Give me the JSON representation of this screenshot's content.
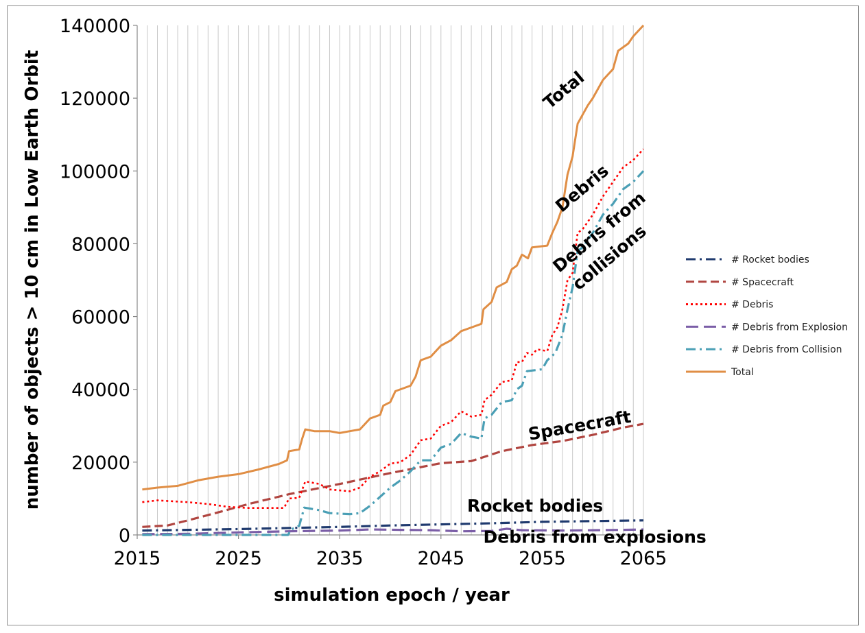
{
  "chart_data": {
    "type": "line",
    "xlabel": "simulation epoch /  year",
    "ylabel": "number of objects > 10 cm in Low Earth Orbit",
    "xlim": [
      2015,
      2065
    ],
    "ylim": [
      0,
      140000
    ],
    "xticks": [
      2015,
      2025,
      2035,
      2045,
      2055,
      2065
    ],
    "yticks": [
      0,
      20000,
      40000,
      60000,
      80000,
      100000,
      120000,
      140000
    ],
    "grid": "vertical",
    "legend_position": "right",
    "series": [
      {
        "name": "# Rocket bodies",
        "color": "#1f3a6e",
        "dash": "dash-dot",
        "points": [
          [
            2015.5,
            1200
          ],
          [
            2020,
            1400
          ],
          [
            2025,
            1600
          ],
          [
            2030,
            1900
          ],
          [
            2035,
            2200
          ],
          [
            2040,
            2600
          ],
          [
            2045,
            2900
          ],
          [
            2050,
            3200
          ],
          [
            2055,
            3600
          ],
          [
            2060,
            3800
          ],
          [
            2065,
            4000
          ]
        ]
      },
      {
        "name": "# Spacecraft",
        "color": "#b04540",
        "dash": "dash",
        "points": [
          [
            2015.5,
            2200
          ],
          [
            2018,
            2600
          ],
          [
            2020,
            4000
          ],
          [
            2023,
            6200
          ],
          [
            2026,
            8500
          ],
          [
            2030,
            11200
          ],
          [
            2035,
            14000
          ],
          [
            2040,
            17000
          ],
          [
            2045,
            19700
          ],
          [
            2048,
            20300
          ],
          [
            2051,
            23000
          ],
          [
            2054,
            24700
          ],
          [
            2057,
            25800
          ],
          [
            2060,
            27500
          ],
          [
            2063,
            29500
          ],
          [
            2065,
            30500
          ]
        ]
      },
      {
        "name": "# Debris",
        "color": "#ff0000",
        "dash": "dot",
        "points": [
          [
            2015.5,
            9000
          ],
          [
            2017,
            9500
          ],
          [
            2020,
            9000
          ],
          [
            2022,
            8500
          ],
          [
            2024,
            7700
          ],
          [
            2026,
            7400
          ],
          [
            2029.5,
            7400
          ],
          [
            2030,
            10000
          ],
          [
            2031,
            10200
          ],
          [
            2031.6,
            14700
          ],
          [
            2033,
            14000
          ],
          [
            2034,
            12500
          ],
          [
            2036,
            12000
          ],
          [
            2037,
            13000
          ],
          [
            2038,
            16000
          ],
          [
            2039,
            17500
          ],
          [
            2040,
            19600
          ],
          [
            2041,
            20000
          ],
          [
            2042,
            22000
          ],
          [
            2043,
            26000
          ],
          [
            2044,
            26500
          ],
          [
            2045,
            30000
          ],
          [
            2046,
            31000
          ],
          [
            2047,
            34000
          ],
          [
            2048,
            32500
          ],
          [
            2049,
            33000
          ],
          [
            2049.3,
            37000
          ],
          [
            2050,
            38500
          ],
          [
            2051,
            42000
          ],
          [
            2052,
            42500
          ],
          [
            2052.5,
            47500
          ],
          [
            2053,
            47500
          ],
          [
            2053.5,
            50000
          ],
          [
            2054,
            49500
          ],
          [
            2054.5,
            51000
          ],
          [
            2055.5,
            50500
          ],
          [
            2056,
            55000
          ],
          [
            2056.5,
            57000
          ],
          [
            2057,
            62000
          ],
          [
            2057.5,
            70000
          ],
          [
            2058,
            72000
          ],
          [
            2058.5,
            83000
          ],
          [
            2059,
            84000
          ],
          [
            2060,
            88000
          ],
          [
            2061,
            93000
          ],
          [
            2062,
            97000
          ],
          [
            2063,
            101000
          ],
          [
            2064,
            103000
          ],
          [
            2065,
            106000
          ]
        ]
      },
      {
        "name": "# Debris from Explosion",
        "color": "#7b5ea7",
        "dash": "longdash",
        "points": [
          [
            2015.5,
            200
          ],
          [
            2020,
            300
          ],
          [
            2025,
            700
          ],
          [
            2030,
            1000
          ],
          [
            2035,
            1200
          ],
          [
            2038,
            1500
          ],
          [
            2041,
            1400
          ],
          [
            2044,
            1300
          ],
          [
            2047,
            1000
          ],
          [
            2050,
            1100
          ],
          [
            2051.5,
            1700
          ],
          [
            2053,
            1300
          ],
          [
            2057,
            1200
          ],
          [
            2060,
            1300
          ],
          [
            2063,
            1400
          ],
          [
            2065,
            1500
          ]
        ]
      },
      {
        "name": "# Debris from Collision",
        "color": "#4a9fb5",
        "dash": "dash-dot",
        "points": [
          [
            2015.5,
            0
          ],
          [
            2024,
            0
          ],
          [
            2029.9,
            0
          ],
          [
            2030.2,
            1500
          ],
          [
            2031,
            2500
          ],
          [
            2031.5,
            7500
          ],
          [
            2033,
            6800
          ],
          [
            2034,
            6000
          ],
          [
            2036,
            5700
          ],
          [
            2037,
            6000
          ],
          [
            2038,
            8000
          ],
          [
            2039,
            10500
          ],
          [
            2040,
            13000
          ],
          [
            2041,
            15000
          ],
          [
            2042,
            17500
          ],
          [
            2043,
            20500
          ],
          [
            2044,
            20500
          ],
          [
            2045,
            24000
          ],
          [
            2046,
            25000
          ],
          [
            2047,
            28000
          ],
          [
            2048,
            27000
          ],
          [
            2049,
            26500
          ],
          [
            2049.3,
            32000
          ],
          [
            2050,
            33000
          ],
          [
            2051,
            36500
          ],
          [
            2052,
            37000
          ],
          [
            2052.5,
            40000
          ],
          [
            2053,
            41000
          ],
          [
            2053.5,
            45000
          ],
          [
            2055,
            45500
          ],
          [
            2055.5,
            48000
          ],
          [
            2056.3,
            50000
          ],
          [
            2057,
            55000
          ],
          [
            2057.5,
            62000
          ],
          [
            2058,
            68000
          ],
          [
            2058.5,
            78000
          ],
          [
            2059,
            79000
          ],
          [
            2060,
            83000
          ],
          [
            2061,
            88000
          ],
          [
            2062,
            91000
          ],
          [
            2063,
            95000
          ],
          [
            2064,
            97000
          ],
          [
            2065,
            100000
          ]
        ]
      },
      {
        "name": "Total",
        "color": "#e08e45",
        "dash": "solid",
        "points": [
          [
            2015.5,
            12500
          ],
          [
            2017,
            13000
          ],
          [
            2019,
            13500
          ],
          [
            2021,
            15000
          ],
          [
            2023,
            16000
          ],
          [
            2025,
            16700
          ],
          [
            2027,
            18000
          ],
          [
            2029,
            19500
          ],
          [
            2029.8,
            20500
          ],
          [
            2030,
            23000
          ],
          [
            2031,
            23500
          ],
          [
            2031.3,
            26500
          ],
          [
            2031.6,
            29000
          ],
          [
            2032.5,
            28500
          ],
          [
            2034,
            28500
          ],
          [
            2035,
            28000
          ],
          [
            2036,
            28500
          ],
          [
            2037,
            29000
          ],
          [
            2038,
            32000
          ],
          [
            2039,
            33000
          ],
          [
            2039.3,
            35500
          ],
          [
            2040,
            36500
          ],
          [
            2040.5,
            39500
          ],
          [
            2042,
            41000
          ],
          [
            2042.5,
            43500
          ],
          [
            2043,
            48000
          ],
          [
            2044,
            49000
          ],
          [
            2045,
            52000
          ],
          [
            2046,
            53500
          ],
          [
            2047,
            56000
          ],
          [
            2048,
            57000
          ],
          [
            2049,
            58000
          ],
          [
            2049.2,
            62000
          ],
          [
            2050,
            64000
          ],
          [
            2050.5,
            68000
          ],
          [
            2051.5,
            69500
          ],
          [
            2052,
            73000
          ],
          [
            2052.5,
            74000
          ],
          [
            2053,
            77000
          ],
          [
            2053.6,
            76000
          ],
          [
            2054,
            79000
          ],
          [
            2055.5,
            79500
          ],
          [
            2056,
            83000
          ],
          [
            2056.5,
            86000
          ],
          [
            2057,
            90000
          ],
          [
            2057.5,
            99000
          ],
          [
            2058,
            104000
          ],
          [
            2058.5,
            113000
          ],
          [
            2059.5,
            118000
          ],
          [
            2060,
            120000
          ],
          [
            2061,
            125000
          ],
          [
            2062,
            128000
          ],
          [
            2062.5,
            133000
          ],
          [
            2063.5,
            135000
          ],
          [
            2064,
            137000
          ],
          [
            2065,
            140000
          ]
        ]
      }
    ],
    "annotations": [
      {
        "text": "Total",
        "x": 2057.5,
        "y": 121000,
        "rotate": -40
      },
      {
        "text": "Debris",
        "x": 2059.3,
        "y": 94000,
        "rotate": -40
      },
      {
        "text": "Debris from",
        "x": 2061.0,
        "y": 82000,
        "rotate": -40
      },
      {
        "text": "collisions",
        "x": 2062.0,
        "y": 75000,
        "rotate": -40
      },
      {
        "text": "Spacecraft",
        "x": 2058.8,
        "y": 28500,
        "rotate": -10
      },
      {
        "text": "Rocket bodies",
        "x": 2054.3,
        "y": 6400,
        "rotate": 0
      },
      {
        "text": "Debris from explosions",
        "x": 2060.2,
        "y": -2200,
        "rotate": 0
      }
    ]
  }
}
